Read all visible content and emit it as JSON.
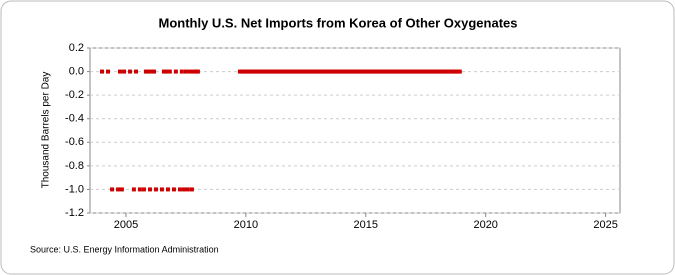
{
  "chart_data": {
    "type": "scatter",
    "title": "Monthly U.S. Net Imports from Korea of Other Oxygenates",
    "y_label": "Thousand Barrels per Day",
    "source": "Source: U.S. Energy Information Administration",
    "color": "#cc0000",
    "grid": true,
    "xlim": [
      2003.5,
      2025.6
    ],
    "xticks": [
      2005,
      2010,
      2015,
      2020,
      2025
    ],
    "ylim": [
      -1.2,
      0.2
    ],
    "yticks": [
      0.2,
      {
        "value": 0,
        "label": "0.0"
      },
      -0.2,
      -0.4,
      -0.6,
      -0.8,
      {
        "value": -1,
        "label": "-1.0"
      },
      -1.2
    ],
    "x": [
      2004.0,
      2004.25,
      2004.42,
      2004.67,
      2004.75,
      2004.83,
      2004.92,
      2005.17,
      2005.33,
      2005.42,
      2005.58,
      2005.75,
      2005.83,
      2005.92,
      2006.0,
      2006.08,
      2006.17,
      2006.25,
      2006.5,
      2006.58,
      2006.67,
      2006.75,
      2006.83,
      2007.0,
      2007.08,
      2007.25,
      2007.33,
      2007.42,
      2007.5,
      2007.58,
      2007.67,
      2007.75,
      2007.83,
      2007.92,
      2008.0,
      2009.75,
      2009.83,
      2009.92,
      2010.0,
      2010.08,
      2010.17,
      2010.25,
      2010.33,
      2010.42,
      2010.5,
      2010.58,
      2010.67,
      2010.75,
      2010.83,
      2010.92,
      2011.0,
      2011.08,
      2011.17,
      2011.25,
      2011.33,
      2011.42,
      2011.5,
      2011.58,
      2011.67,
      2011.75,
      2011.83,
      2011.92,
      2012.0,
      2012.08,
      2012.17,
      2012.25,
      2012.33,
      2012.42,
      2012.5,
      2012.58,
      2012.67,
      2012.75,
      2012.83,
      2012.92,
      2013.0,
      2013.08,
      2013.17,
      2013.25,
      2013.33,
      2013.42,
      2013.5,
      2013.58,
      2013.67,
      2013.75,
      2013.83,
      2013.92,
      2014.0,
      2014.08,
      2014.17,
      2014.25,
      2014.33,
      2014.42,
      2014.5,
      2014.58,
      2014.67,
      2014.75,
      2014.83,
      2014.92,
      2015.0,
      2015.08,
      2015.17,
      2015.25,
      2015.33,
      2015.42,
      2015.5,
      2015.58,
      2015.67,
      2015.75,
      2015.83,
      2015.92,
      2016.0,
      2016.08,
      2016.17,
      2016.25,
      2016.33,
      2016.42,
      2016.5,
      2016.58,
      2016.67,
      2016.75,
      2016.83,
      2016.92,
      2017.0,
      2017.08,
      2017.17,
      2017.25,
      2017.33,
      2017.42,
      2017.5,
      2017.58,
      2017.67,
      2017.75,
      2017.83,
      2017.92,
      2018.0,
      2018.08,
      2018.17,
      2018.25,
      2018.33,
      2018.42,
      2018.5,
      2018.58,
      2018.67,
      2018.75,
      2018.83,
      2018.92
    ],
    "values": [
      0,
      0,
      -1,
      -1,
      0,
      -1,
      0,
      0,
      -1,
      0,
      -1,
      -1,
      0,
      0,
      -1,
      0,
      0,
      -1,
      -1,
      0,
      0,
      -1,
      0,
      -1,
      0,
      -1,
      0,
      -1,
      0,
      -1,
      0,
      -1,
      0,
      0,
      0,
      0,
      0,
      0,
      0,
      0,
      0,
      0,
      0,
      0,
      0,
      0,
      0,
      0,
      0,
      0,
      0,
      0,
      0,
      0,
      0,
      0,
      0,
      0,
      0,
      0,
      0,
      0,
      0,
      0,
      0,
      0,
      0,
      0,
      0,
      0,
      0,
      0,
      0,
      0,
      0,
      0,
      0,
      0,
      0,
      0,
      0,
      0,
      0,
      0,
      0,
      0,
      0,
      0,
      0,
      0,
      0,
      0,
      0,
      0,
      0,
      0,
      0,
      0,
      0,
      0,
      0,
      0,
      0,
      0,
      0,
      0,
      0,
      0,
      0,
      0,
      0,
      0,
      0,
      0,
      0,
      0,
      0,
      0,
      0,
      0,
      0,
      0,
      0,
      0,
      0,
      0,
      0,
      0,
      0,
      0,
      0,
      0,
      0,
      0,
      0,
      0,
      0,
      0,
      0,
      0,
      0,
      0,
      0,
      0,
      0,
      0
    ]
  }
}
